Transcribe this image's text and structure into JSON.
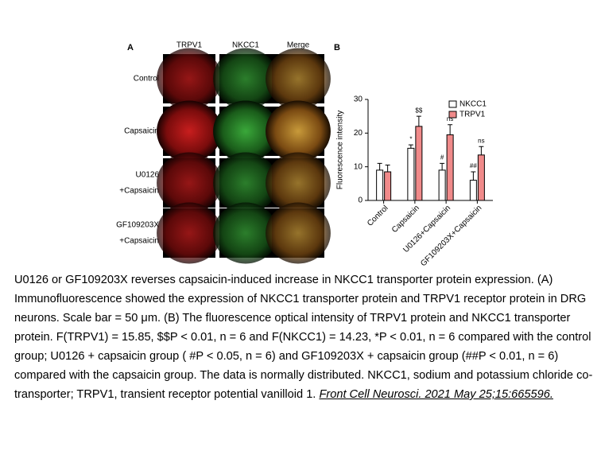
{
  "figure": {
    "panel_a_label": "A",
    "panel_b_label": "B",
    "columns": [
      "TRPV1",
      "NKCC1",
      "Merge"
    ],
    "rows": [
      [
        "Control"
      ],
      [
        "Capsaicin"
      ],
      [
        "U0126",
        "+Capsaicin"
      ],
      [
        "GF109203X",
        "+Capsaicin"
      ]
    ]
  },
  "chart_data": {
    "type": "bar",
    "y_label": "Fluorescence intensity",
    "categories": [
      "Control",
      "Capsaicin",
      "U0126+Capsaicin",
      "GF109203X+Capsaicin"
    ],
    "series": [
      {
        "name": "NKCC1",
        "color": "#ffffff",
        "values": [
          9,
          15.5,
          9,
          6
        ],
        "errors": [
          2,
          1,
          2,
          2.5
        ],
        "annotations": [
          null,
          "*",
          "#",
          "##"
        ]
      },
      {
        "name": "TRPV1",
        "color": "#f08a8a",
        "values": [
          8.5,
          22,
          19.5,
          13.5
        ],
        "errors": [
          2,
          3,
          3,
          2.5
        ],
        "annotations": [
          null,
          "$$",
          "ns",
          "ns"
        ]
      }
    ],
    "ylim": [
      0,
      30
    ],
    "yticks": [
      0,
      10,
      20,
      30
    ],
    "legend": "top-right"
  },
  "caption": {
    "text": "U0126 or GF109203X reverses capsaicin-induced increase in NKCC1 transporter protein expression. (A) Immunofluorescence showed the expression of NKCC1 transporter protein and TRPV1 receptor protein in DRG neurons. Scale bar = 50 μm. (B) The fluorescence optical intensity of TRPV1 protein and NKCC1 transporter protein. F(TRPV1) = 15.85, $$P < 0.01, n = 6 and F(NKCC1) = 14.23, *P < 0.01, n = 6 compared with the control group; U0126 + capsaicin group ( #P < 0.05, n = 6) and GF109203X + capsaicin group (##P < 0.01, n = 6) compared with the capsaicin group. The data is normally distributed. NKCC1, sodium and potassium chloride co-transporter; TRPV1, transient receptor potential vanilloid 1.",
    "citation": "Front Cell Neurosci. 2021 May 25;15:665596."
  }
}
